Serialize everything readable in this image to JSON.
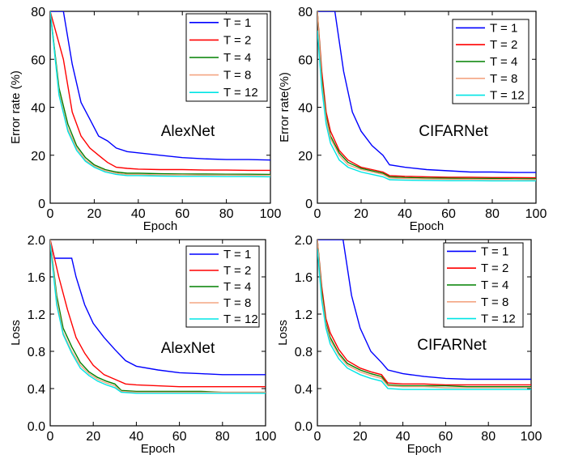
{
  "chart_data": [
    {
      "type": "line",
      "title": "AlexNet",
      "xlabel": "Epoch",
      "ylabel": "Error rate (%)",
      "xlim": [
        0,
        100
      ],
      "ylim": [
        0,
        80
      ],
      "xticks": [
        0,
        20,
        40,
        60,
        80,
        100
      ],
      "yticks": [
        0,
        20,
        40,
        60,
        80
      ],
      "legend_position": "top-right",
      "series": [
        {
          "name": "T = 1",
          "color": "#0000ff",
          "x": [
            0,
            6,
            10,
            14,
            18,
            22,
            26,
            30,
            35,
            40,
            50,
            60,
            70,
            80,
            90,
            100
          ],
          "y": [
            80,
            80,
            58,
            42,
            35,
            28,
            26,
            23,
            21.5,
            21,
            20,
            19,
            18.5,
            18.2,
            18.2,
            18
          ]
        },
        {
          "name": "T = 2",
          "color": "#ff0000",
          "x": [
            0,
            6,
            10,
            14,
            18,
            22,
            26,
            30,
            35,
            40,
            50,
            60,
            70,
            80,
            90,
            100
          ],
          "y": [
            80,
            60,
            38,
            28,
            23,
            20,
            17,
            15,
            14.5,
            14.2,
            14,
            14,
            13.8,
            13.8,
            13.7,
            13.7
          ]
        },
        {
          "name": "T = 4",
          "color": "#008000",
          "x": [
            0,
            4,
            8,
            12,
            16,
            20,
            25,
            30,
            35,
            40,
            50,
            60,
            70,
            80,
            90,
            100
          ],
          "y": [
            80,
            48,
            33,
            24,
            19,
            16,
            14,
            13,
            12.5,
            12.5,
            12.3,
            12.2,
            12.2,
            12.1,
            12.1,
            12
          ]
        },
        {
          "name": "T = 8",
          "color": "#f4a582",
          "x": [
            0,
            4,
            8,
            12,
            16,
            20,
            25,
            30,
            35,
            40,
            50,
            60,
            70,
            80,
            90,
            100
          ],
          "y": [
            80,
            46,
            31,
            23,
            18,
            15.5,
            13.5,
            12.5,
            12,
            12,
            11.8,
            11.8,
            11.7,
            11.7,
            11.6,
            11.6
          ]
        },
        {
          "name": "T = 12",
          "color": "#00e5e5",
          "x": [
            0,
            4,
            8,
            12,
            16,
            20,
            25,
            30,
            35,
            40,
            50,
            60,
            70,
            80,
            90,
            100
          ],
          "y": [
            80,
            45,
            30,
            22,
            17.5,
            15,
            13,
            12,
            11.5,
            11.5,
            11.3,
            11.2,
            11.2,
            11.1,
            11.1,
            11
          ]
        }
      ]
    },
    {
      "type": "line",
      "title": "CIFARNet",
      "xlabel": "Epoch",
      "ylabel": "Error rate(%)",
      "xlim": [
        0,
        100
      ],
      "ylim": [
        0,
        80
      ],
      "xticks": [
        0,
        20,
        40,
        60,
        80,
        100
      ],
      "yticks": [
        0,
        20,
        40,
        60,
        80
      ],
      "legend_position": "top-right",
      "series": [
        {
          "name": "T = 1",
          "color": "#0000ff",
          "x": [
            0,
            8,
            12,
            16,
            20,
            25,
            30,
            33,
            40,
            50,
            60,
            70,
            80,
            90,
            100
          ],
          "y": [
            80,
            80,
            55,
            38,
            30,
            24,
            20,
            16,
            15,
            14,
            13.5,
            13,
            13,
            12.8,
            12.8
          ]
        },
        {
          "name": "T = 2",
          "color": "#ff0000",
          "x": [
            0,
            2,
            4,
            6,
            10,
            14,
            20,
            25,
            30,
            33,
            40,
            50,
            60,
            70,
            80,
            90,
            100
          ],
          "y": [
            80,
            55,
            38,
            30,
            22,
            18,
            15,
            14,
            13,
            11.5,
            11.2,
            11,
            10.8,
            10.8,
            10.7,
            10.7,
            10.6
          ]
        },
        {
          "name": "T = 4",
          "color": "#008000",
          "x": [
            0,
            2,
            4,
            6,
            10,
            14,
            20,
            25,
            30,
            33,
            40,
            50,
            60,
            70,
            80,
            90,
            100
          ],
          "y": [
            80,
            52,
            36,
            28,
            21,
            17,
            14.5,
            13.5,
            12.5,
            11,
            10.7,
            10.5,
            10.4,
            10.3,
            10.3,
            10.2,
            10.2
          ]
        },
        {
          "name": "T = 8",
          "color": "#f4a582",
          "x": [
            0,
            2,
            4,
            6,
            10,
            14,
            20,
            25,
            30,
            33,
            40,
            50,
            60,
            70,
            80,
            90,
            100
          ],
          "y": [
            80,
            50,
            35,
            27,
            20,
            16,
            14,
            13,
            12,
            10.5,
            10.3,
            10.1,
            10,
            10,
            9.9,
            9.9,
            9.8
          ]
        },
        {
          "name": "T = 12",
          "color": "#00e5e5",
          "x": [
            0,
            2,
            4,
            6,
            10,
            14,
            20,
            25,
            30,
            33,
            40,
            50,
            60,
            70,
            80,
            90,
            100
          ],
          "y": [
            72,
            48,
            33,
            25,
            18,
            15,
            13,
            12,
            11,
            9.8,
            9.6,
            9.5,
            9.4,
            9.4,
            9.3,
            9.3,
            9.3
          ]
        }
      ]
    },
    {
      "type": "line",
      "title": "AlexNet",
      "xlabel": "Epoch",
      "ylabel": "Loss",
      "xlim": [
        0,
        100
      ],
      "ylim": [
        0,
        2.0
      ],
      "xticks": [
        0,
        20,
        40,
        60,
        80,
        100
      ],
      "yticks": [
        0.0,
        0.4,
        0.8,
        1.2,
        1.6,
        2.0
      ],
      "legend_position": "top-right",
      "series": [
        {
          "name": "T = 1",
          "color": "#0000ff",
          "x": [
            0,
            2,
            4,
            8,
            10,
            12,
            16,
            20,
            25,
            30,
            35,
            40,
            50,
            60,
            70,
            80,
            90,
            100
          ],
          "y": [
            2.0,
            1.8,
            1.8,
            1.8,
            1.8,
            1.6,
            1.3,
            1.1,
            0.95,
            0.82,
            0.7,
            0.64,
            0.6,
            0.57,
            0.56,
            0.55,
            0.55,
            0.55
          ]
        },
        {
          "name": "T = 2",
          "color": "#ff0000",
          "x": [
            0,
            4,
            8,
            12,
            16,
            20,
            25,
            30,
            35,
            40,
            50,
            60,
            70,
            80,
            90,
            100
          ],
          "y": [
            2.0,
            1.6,
            1.25,
            0.95,
            0.78,
            0.65,
            0.55,
            0.5,
            0.45,
            0.44,
            0.43,
            0.42,
            0.42,
            0.42,
            0.42,
            0.42
          ]
        },
        {
          "name": "T = 4",
          "color": "#008000",
          "x": [
            0,
            3,
            6,
            10,
            14,
            18,
            22,
            26,
            30,
            33,
            40,
            50,
            60,
            70,
            80,
            90,
            100
          ],
          "y": [
            2.0,
            1.4,
            1.05,
            0.85,
            0.68,
            0.58,
            0.52,
            0.48,
            0.45,
            0.38,
            0.37,
            0.37,
            0.37,
            0.37,
            0.36,
            0.36,
            0.36
          ]
        },
        {
          "name": "T = 8",
          "color": "#f4a582",
          "x": [
            0,
            3,
            6,
            10,
            14,
            18,
            22,
            26,
            30,
            33,
            40,
            50,
            60,
            70,
            80,
            90,
            100
          ],
          "y": [
            2.0,
            1.35,
            1.0,
            0.8,
            0.65,
            0.56,
            0.5,
            0.46,
            0.43,
            0.37,
            0.36,
            0.36,
            0.36,
            0.36,
            0.36,
            0.36,
            0.36
          ]
        },
        {
          "name": "T = 12",
          "color": "#00e5e5",
          "x": [
            0,
            3,
            6,
            10,
            14,
            18,
            22,
            26,
            30,
            33,
            40,
            50,
            60,
            70,
            80,
            90,
            100
          ],
          "y": [
            1.95,
            1.3,
            0.98,
            0.78,
            0.62,
            0.54,
            0.48,
            0.44,
            0.41,
            0.36,
            0.35,
            0.35,
            0.35,
            0.35,
            0.35,
            0.35,
            0.35
          ]
        }
      ]
    },
    {
      "type": "line",
      "title": "CIFARNet",
      "xlabel": "Epoch",
      "ylabel": "Loss",
      "xlim": [
        0,
        100
      ],
      "ylim": [
        0,
        2.0
      ],
      "xticks": [
        0,
        20,
        40,
        60,
        80,
        100
      ],
      "yticks": [
        0.0,
        0.4,
        0.8,
        1.2,
        1.6,
        2.0
      ],
      "legend_position": "top-right",
      "series": [
        {
          "name": "T = 1",
          "color": "#0000ff",
          "x": [
            0,
            4,
            8,
            12,
            16,
            20,
            25,
            30,
            33,
            40,
            50,
            60,
            70,
            80,
            90,
            100
          ],
          "y": [
            2.0,
            2.0,
            2.0,
            2.0,
            1.4,
            1.05,
            0.8,
            0.68,
            0.6,
            0.56,
            0.53,
            0.51,
            0.5,
            0.5,
            0.5,
            0.5
          ]
        },
        {
          "name": "T = 2",
          "color": "#ff0000",
          "x": [
            0,
            2,
            4,
            6,
            10,
            14,
            20,
            25,
            30,
            33,
            40,
            50,
            60,
            70,
            80,
            90,
            100
          ],
          "y": [
            2.0,
            1.5,
            1.15,
            1.0,
            0.82,
            0.7,
            0.62,
            0.58,
            0.55,
            0.46,
            0.45,
            0.45,
            0.44,
            0.44,
            0.44,
            0.44,
            0.44
          ]
        },
        {
          "name": "T = 4",
          "color": "#008000",
          "x": [
            0,
            2,
            4,
            6,
            10,
            14,
            20,
            25,
            30,
            33,
            40,
            50,
            60,
            70,
            80,
            90,
            100
          ],
          "y": [
            2.0,
            1.45,
            1.1,
            0.95,
            0.78,
            0.67,
            0.6,
            0.56,
            0.53,
            0.44,
            0.43,
            0.43,
            0.43,
            0.42,
            0.42,
            0.42,
            0.42
          ]
        },
        {
          "name": "T = 8",
          "color": "#f4a582",
          "x": [
            0,
            2,
            4,
            6,
            10,
            14,
            20,
            25,
            30,
            33,
            40,
            50,
            60,
            70,
            80,
            90,
            100
          ],
          "y": [
            2.0,
            1.4,
            1.08,
            0.92,
            0.76,
            0.65,
            0.58,
            0.54,
            0.51,
            0.43,
            0.42,
            0.42,
            0.41,
            0.41,
            0.41,
            0.41,
            0.41
          ]
        },
        {
          "name": "T = 12",
          "color": "#00e5e5",
          "x": [
            0,
            2,
            4,
            6,
            10,
            14,
            20,
            25,
            30,
            33,
            40,
            50,
            60,
            70,
            80,
            90,
            100
          ],
          "y": [
            1.9,
            1.35,
            1.05,
            0.88,
            0.72,
            0.62,
            0.55,
            0.51,
            0.48,
            0.4,
            0.39,
            0.39,
            0.39,
            0.39,
            0.39,
            0.39,
            0.39
          ]
        }
      ]
    }
  ]
}
